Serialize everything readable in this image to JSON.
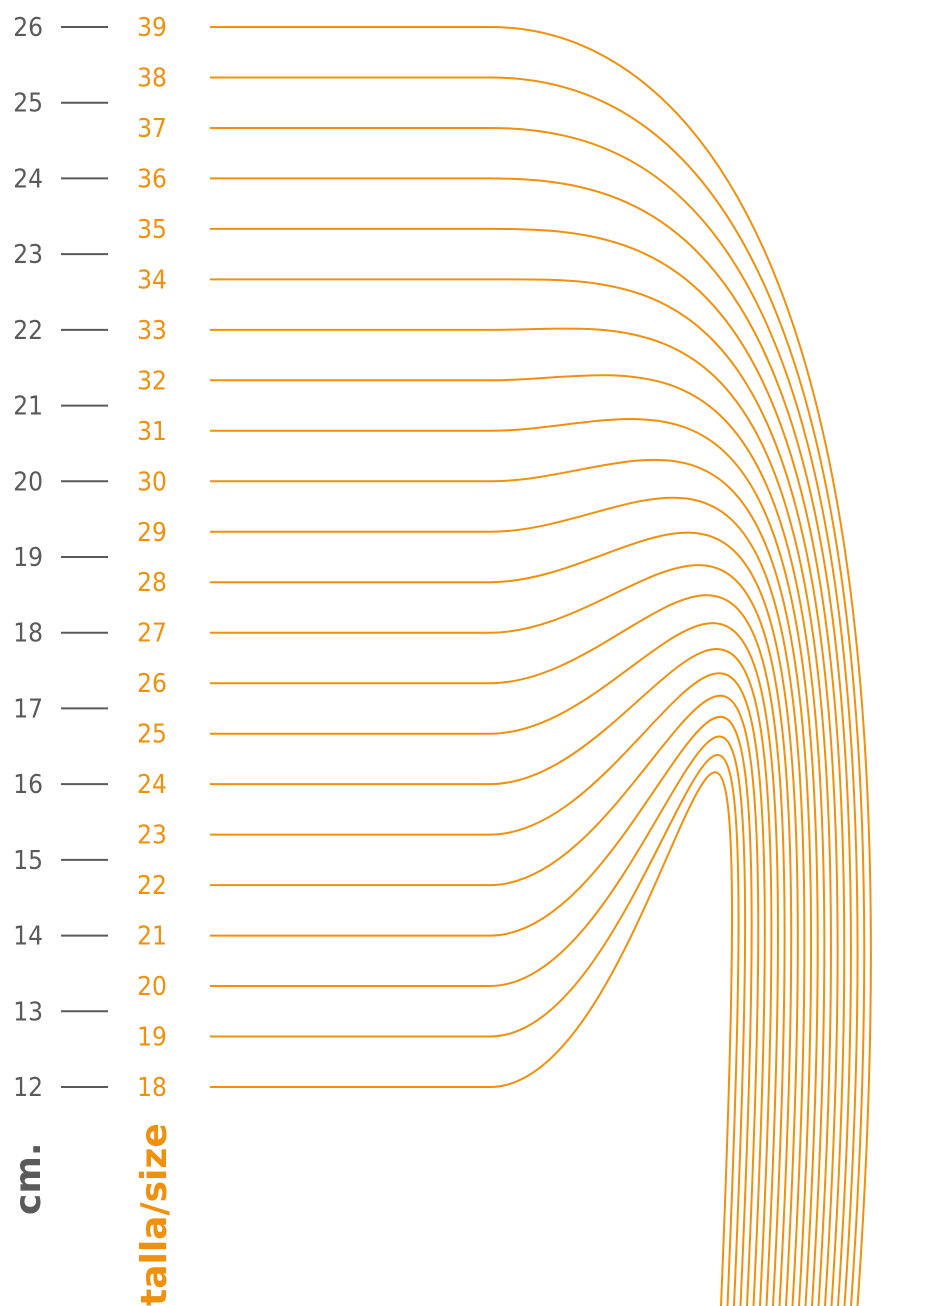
{
  "title": "",
  "colors": {
    "accent": "#f0900c",
    "scale": "#5a5a5a"
  },
  "cm_axis": {
    "title": "cm."
  },
  "size_axis": {
    "title": "talla/size"
  },
  "chart_data": {
    "type": "diagram",
    "cm_ticks": [
      26,
      25,
      24,
      23,
      22,
      21,
      20,
      19,
      18,
      17,
      16,
      15,
      14,
      13,
      12
    ],
    "sizes": [
      39,
      38,
      37,
      36,
      35,
      34,
      33,
      32,
      31,
      30,
      29,
      28,
      27,
      26,
      25,
      24,
      23,
      22,
      21,
      20,
      19,
      18
    ]
  }
}
